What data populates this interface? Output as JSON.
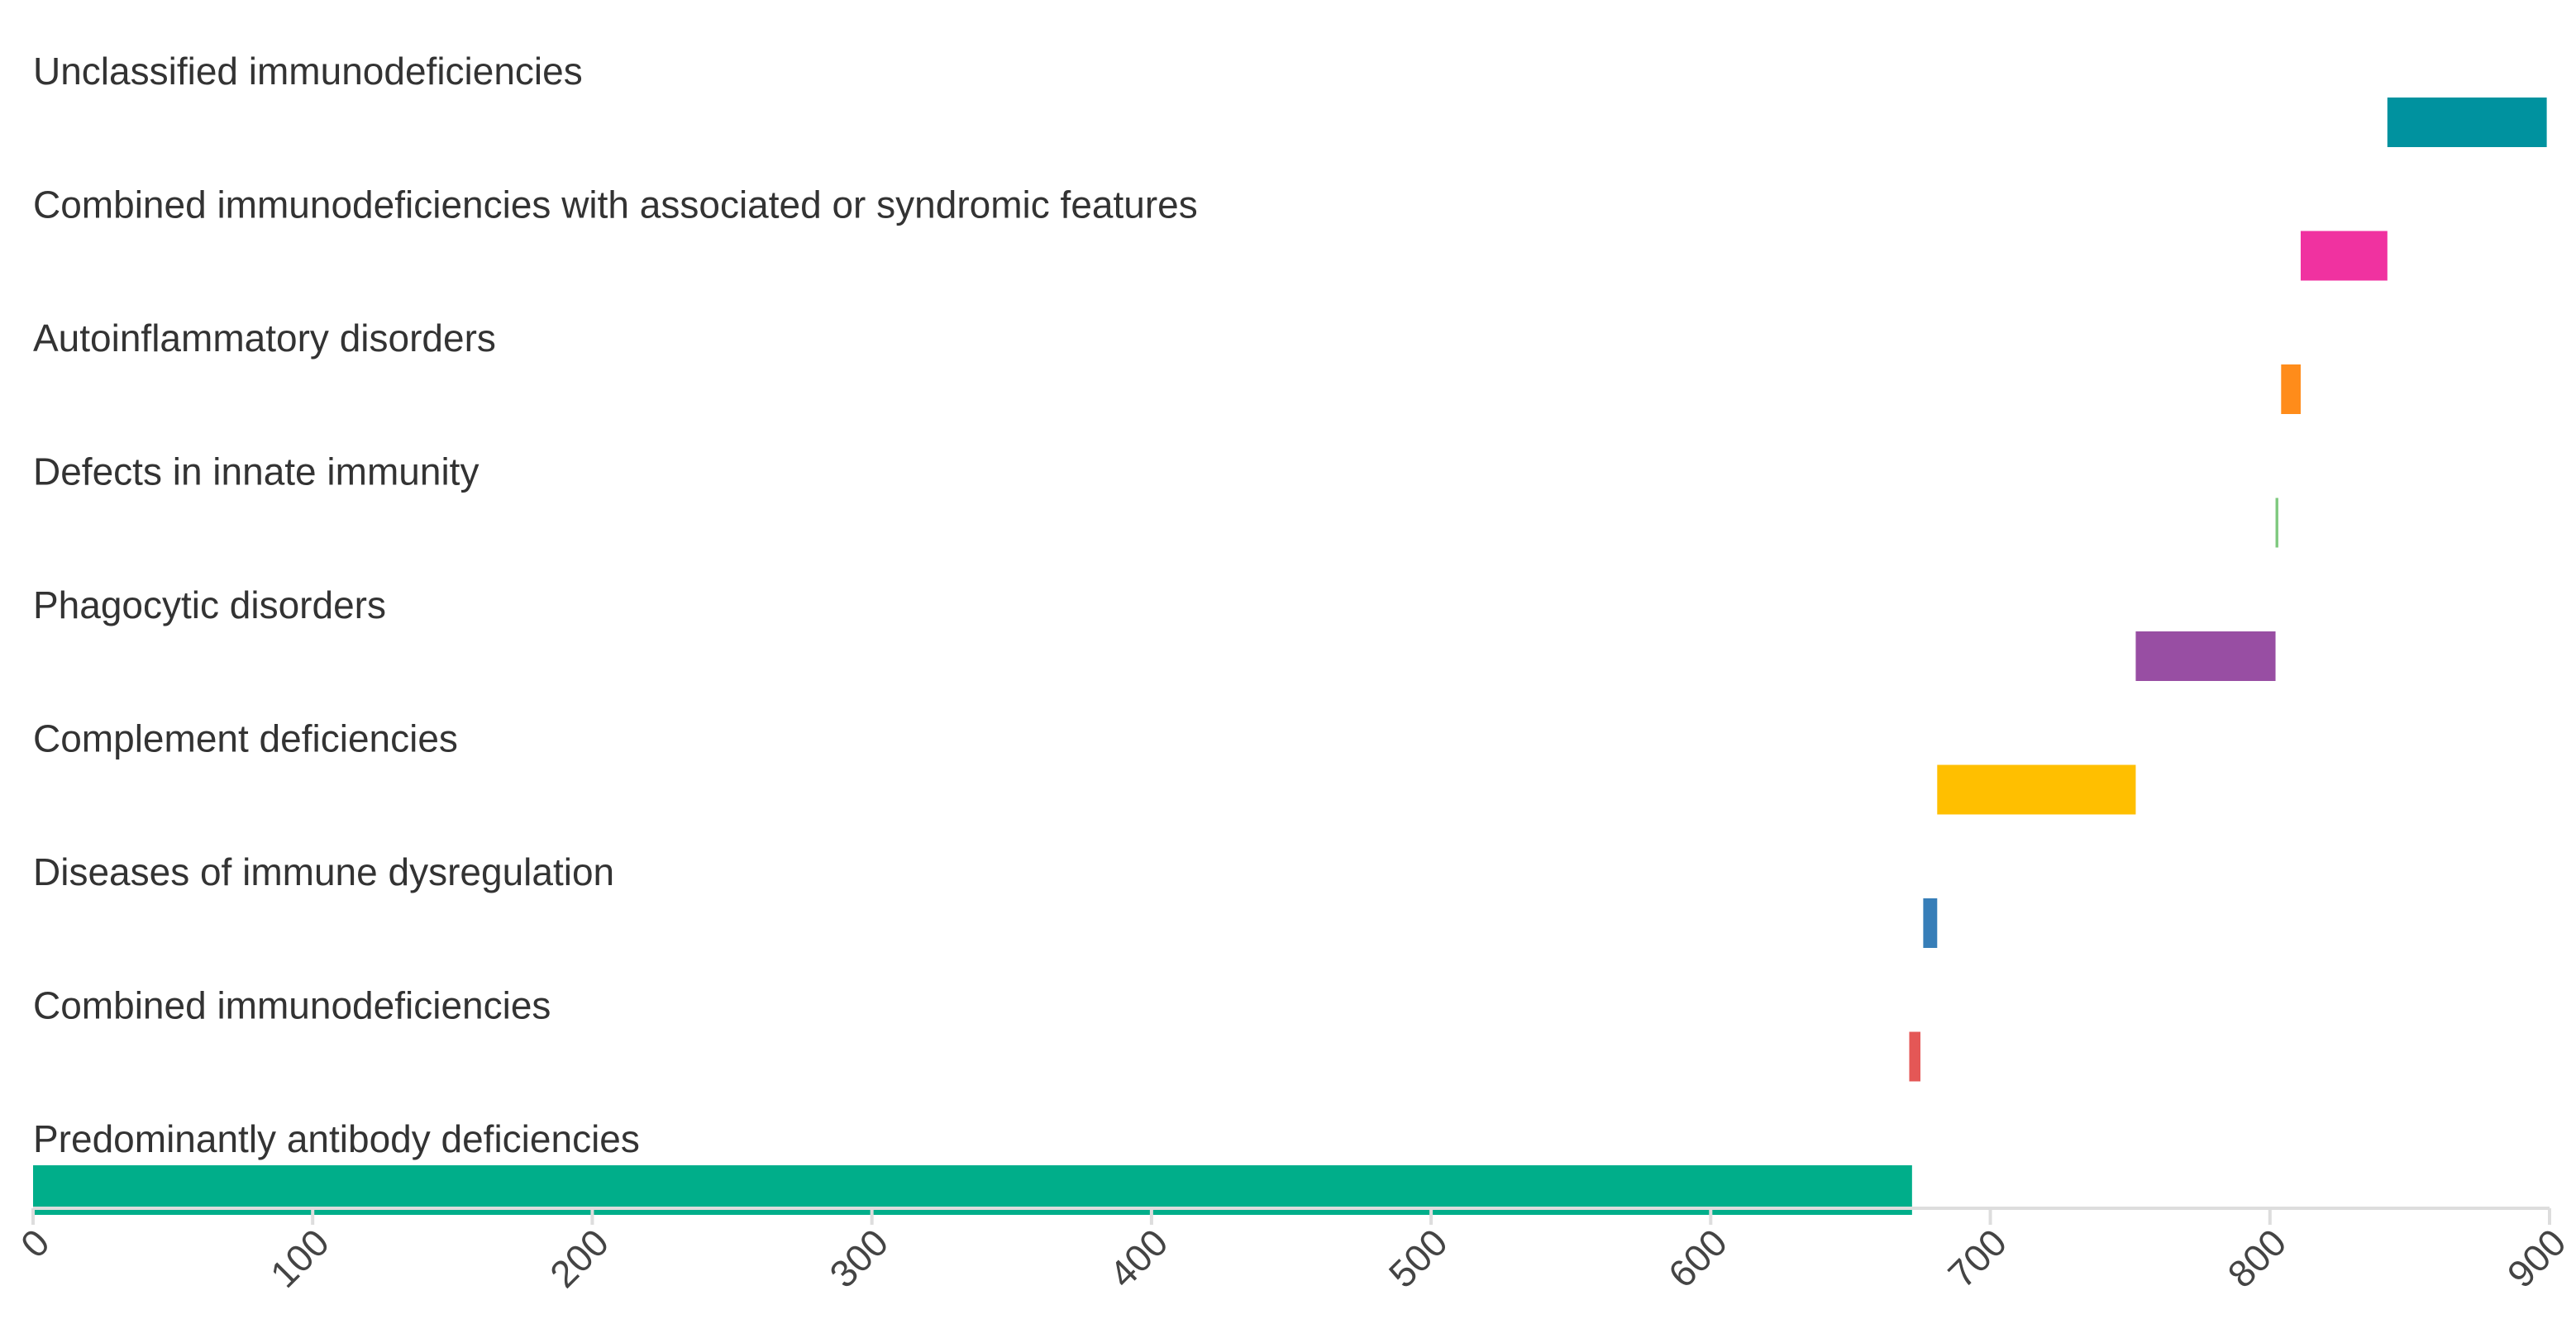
{
  "chart_data": {
    "type": "bar",
    "subtype": "waterfall",
    "orientation": "horizontal",
    "categories": [
      "Unclassified immunodeficiencies",
      "Combined immunodeficiencies with associated or syndromic features",
      "Autoinflammatory disorders",
      "Defects in innate immunity",
      "Phagocytic disorders",
      "Complement deficiencies",
      "Diseases of immune dysregulation",
      "Combined immunodeficiencies",
      "Predominantly antibody deficiencies"
    ],
    "ranges": [
      [
        842,
        899
      ],
      [
        811,
        842
      ],
      [
        804,
        811
      ],
      [
        802,
        803
      ],
      [
        752,
        802
      ],
      [
        681,
        752
      ],
      [
        676,
        681
      ],
      [
        671,
        675
      ],
      [
        0,
        672
      ]
    ],
    "colors": [
      "#00929f",
      "#f032a0",
      "#ff8c1a",
      "#7fc97f",
      "#984ea3",
      "#ffbf00",
      "#377eb8",
      "#e45756",
      "#00ae8a"
    ],
    "xlim": [
      0,
      900
    ],
    "ticks": [
      "0",
      "100",
      "200",
      "300",
      "400",
      "500",
      "600",
      "700",
      "800",
      "900"
    ],
    "tick_values": [
      0,
      100,
      200,
      300,
      400,
      500,
      600,
      700,
      800,
      900
    ],
    "title": "",
    "xlabel": "",
    "ylabel": "",
    "grid": false,
    "legend": "none"
  }
}
